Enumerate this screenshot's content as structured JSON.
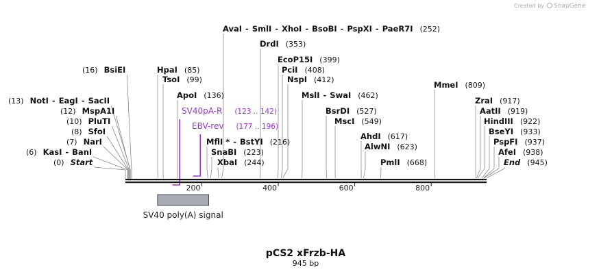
{
  "credit": {
    "prefix": "Created by",
    "brand": "SnapGene"
  },
  "title": "pCS2 xFrzb-HA",
  "subtitle": "945 bp",
  "length": 945,
  "ruler": {
    "ticks": [
      {
        "value": 200,
        "label": "200"
      },
      {
        "value": 400,
        "label": "400"
      },
      {
        "value": 600,
        "label": "600"
      },
      {
        "value": 800,
        "label": "800"
      }
    ]
  },
  "feature": {
    "label": "SV40 poly(A) signal",
    "start": 84,
    "end": 218,
    "color": "#a6abb3"
  },
  "primers": [
    {
      "name": "SV40pA-R",
      "range": "(123 .. 142)",
      "start": 123,
      "end": 142,
      "direction": "reverse"
    },
    {
      "name": "EBV-rev",
      "range": "(177 .. 196)",
      "start": 177,
      "end": 196,
      "direction": "reverse"
    }
  ],
  "sites": [
    {
      "id": "avai",
      "names": [
        "AvaI",
        "SmlI",
        "XhoI",
        "BsoBI",
        "PspXI",
        "PaeR7I"
      ],
      "pos_label": "(252)",
      "pos": 252
    },
    {
      "id": "drdi",
      "names": [
        "DrdI"
      ],
      "pos_label": "(353)",
      "pos": 353
    },
    {
      "id": "bsiei",
      "names": [
        "BsiEI"
      ],
      "pos_label": "(16)",
      "pos": 16
    },
    {
      "id": "hpai",
      "names": [
        "HpaI"
      ],
      "pos_label": "(85)",
      "pos": 85
    },
    {
      "id": "ecop15i",
      "names": [
        "EcoP15I"
      ],
      "pos_label": "(399)",
      "pos": 399
    },
    {
      "id": "pcii",
      "names": [
        "PciI"
      ],
      "pos_label": "(408)",
      "pos": 408
    },
    {
      "id": "tsoi",
      "names": [
        "TsoI"
      ],
      "pos_label": "(99)",
      "pos": 99
    },
    {
      "id": "nspi",
      "names": [
        "NspI"
      ],
      "pos_label": "(412)",
      "pos": 412
    },
    {
      "id": "mmei",
      "names": [
        "MmeI"
      ],
      "pos_label": "(809)",
      "pos": 809
    },
    {
      "id": "apoi",
      "names": [
        "ApoI"
      ],
      "pos_label": "(136)",
      "pos": 136
    },
    {
      "id": "msli",
      "names": [
        "MslI",
        "SwaI"
      ],
      "pos_label": "(462)",
      "pos": 462
    },
    {
      "id": "noti",
      "names": [
        "NotI",
        "EagI",
        "SacII"
      ],
      "pos_label": "(13)",
      "pos": 13
    },
    {
      "id": "zrai",
      "names": [
        "ZraI"
      ],
      "pos_label": "(917)",
      "pos": 917
    },
    {
      "id": "mspa1i",
      "names": [
        "MspA1I"
      ],
      "pos_label": "(12)",
      "pos": 12
    },
    {
      "id": "bsrdi",
      "names": [
        "BsrDI"
      ],
      "pos_label": "(527)",
      "pos": 527
    },
    {
      "id": "aatii",
      "names": [
        "AatII"
      ],
      "pos_label": "(919)",
      "pos": 919
    },
    {
      "id": "pluti",
      "names": [
        "PluTI"
      ],
      "pos_label": "(10)",
      "pos": 10
    },
    {
      "id": "msci",
      "names": [
        "MscI"
      ],
      "pos_label": "(549)",
      "pos": 549
    },
    {
      "id": "hindiii",
      "names": [
        "HindIII"
      ],
      "pos_label": "(922)",
      "pos": 922
    },
    {
      "id": "sfoi",
      "names": [
        "SfoI"
      ],
      "pos_label": "(8)",
      "pos": 8
    },
    {
      "id": "bseyi",
      "names": [
        "BseYI"
      ],
      "pos_label": "(933)",
      "pos": 933
    },
    {
      "id": "ahdi",
      "names": [
        "AhdI"
      ],
      "pos_label": "(617)",
      "pos": 617
    },
    {
      "id": "nari",
      "names": [
        "NarI"
      ],
      "pos_label": "(7)",
      "pos": 7
    },
    {
      "id": "mfli",
      "names": [
        "MflI *",
        "BstYI"
      ],
      "pos_label": "(216)",
      "pos": 216
    },
    {
      "id": "pspfi",
      "names": [
        "PspFI"
      ],
      "pos_label": "(937)",
      "pos": 937
    },
    {
      "id": "alwni",
      "names": [
        "AlwNI"
      ],
      "pos_label": "(623)",
      "pos": 623
    },
    {
      "id": "snabi",
      "names": [
        "SnaBI"
      ],
      "pos_label": "(223)",
      "pos": 223
    },
    {
      "id": "kasi",
      "names": [
        "KasI",
        "BanI"
      ],
      "pos_label": "(6)",
      "pos": 6
    },
    {
      "id": "afei",
      "names": [
        "AfeI"
      ],
      "pos_label": "(938)",
      "pos": 938
    },
    {
      "id": "pmli",
      "names": [
        "PmlI"
      ],
      "pos_label": "(668)",
      "pos": 668
    },
    {
      "id": "xbai",
      "names": [
        "XbaI"
      ],
      "pos_label": "(244)",
      "pos": 244
    },
    {
      "id": "start",
      "names": [
        "Start"
      ],
      "pos_label": "(0)",
      "pos": 0,
      "italic": true
    },
    {
      "id": "end",
      "names": [
        "End"
      ],
      "pos_label": "(945)",
      "pos": 945,
      "italic": true
    }
  ]
}
